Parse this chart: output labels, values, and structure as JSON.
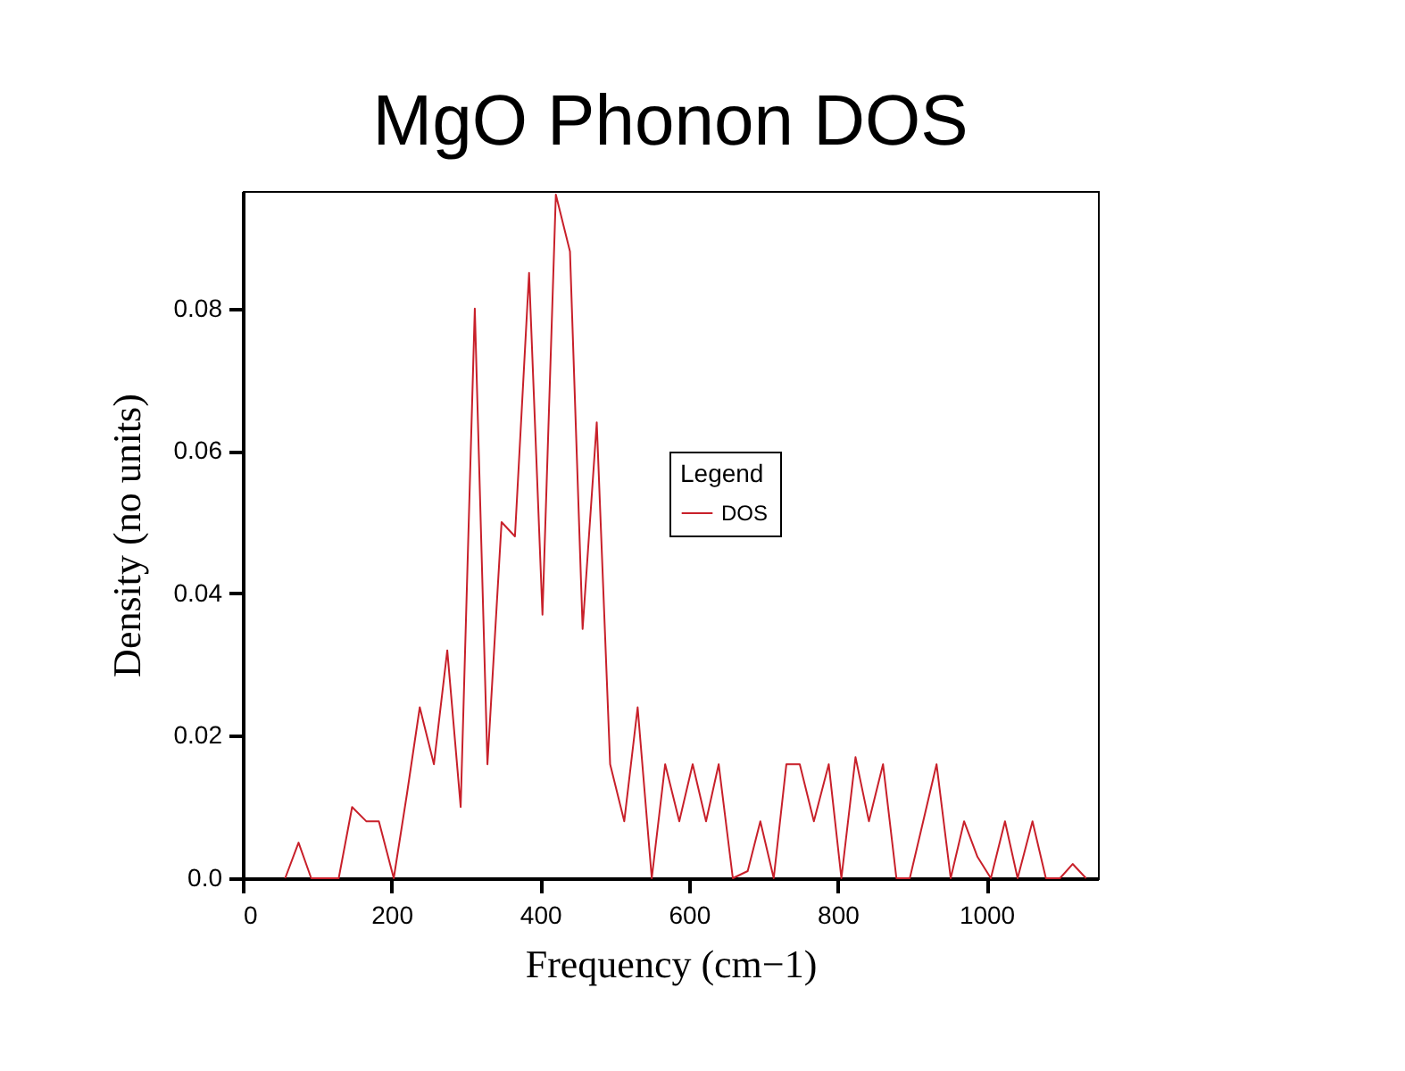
{
  "chart_data": {
    "type": "line",
    "title": "MgO Phonon DOS",
    "xlabel": "Frequency (cm−1)",
    "ylabel": "Density (no units)",
    "legend_title": "Legend",
    "legend": "right",
    "grid": false,
    "xlim": [
      0,
      1150
    ],
    "xticks": [
      0,
      200,
      400,
      600,
      800,
      1000
    ],
    "ylim": [
      0,
      0.0965
    ],
    "yticks": [
      {
        "value": 0,
        "label": "0.0"
      },
      0.02,
      0.04,
      0.06,
      0.08
    ],
    "series": [
      {
        "name": "DOS",
        "color": "#c8202a",
        "x": [
          57,
          75,
          92,
          110,
          129,
          147,
          166,
          183,
          203,
          221,
          238,
          257,
          275,
          293,
          312,
          329,
          348,
          366,
          385,
          403,
          421,
          440,
          457,
          476,
          494,
          513,
          531,
          550,
          568,
          587,
          605,
          623,
          640,
          659,
          679,
          696,
          714,
          731,
          749,
          768,
          788,
          805,
          824,
          842,
          861,
          879,
          897,
          915,
          933,
          952,
          970,
          988,
          1006,
          1025,
          1042,
          1062,
          1080,
          1099,
          1116,
          1134
        ],
        "values": [
          0,
          0.005,
          0,
          0,
          0,
          0.01,
          0.008,
          0.008,
          0,
          0.012,
          0.024,
          0.016,
          0.032,
          0.01,
          0.08,
          0.016,
          0.05,
          0.048,
          0.085,
          0.037,
          0.096,
          0.088,
          0.035,
          0.064,
          0.016,
          0.008,
          0.024,
          0,
          0.016,
          0.008,
          0.016,
          0.008,
          0.016,
          0,
          0.001,
          0.008,
          0,
          0.016,
          0.016,
          0.008,
          0.016,
          0,
          0.017,
          0.008,
          0.016,
          0,
          0,
          0.008,
          0.016,
          0,
          0.008,
          0.003,
          0,
          0.008,
          0,
          0.008,
          0,
          0,
          0.002,
          0
        ]
      }
    ]
  }
}
